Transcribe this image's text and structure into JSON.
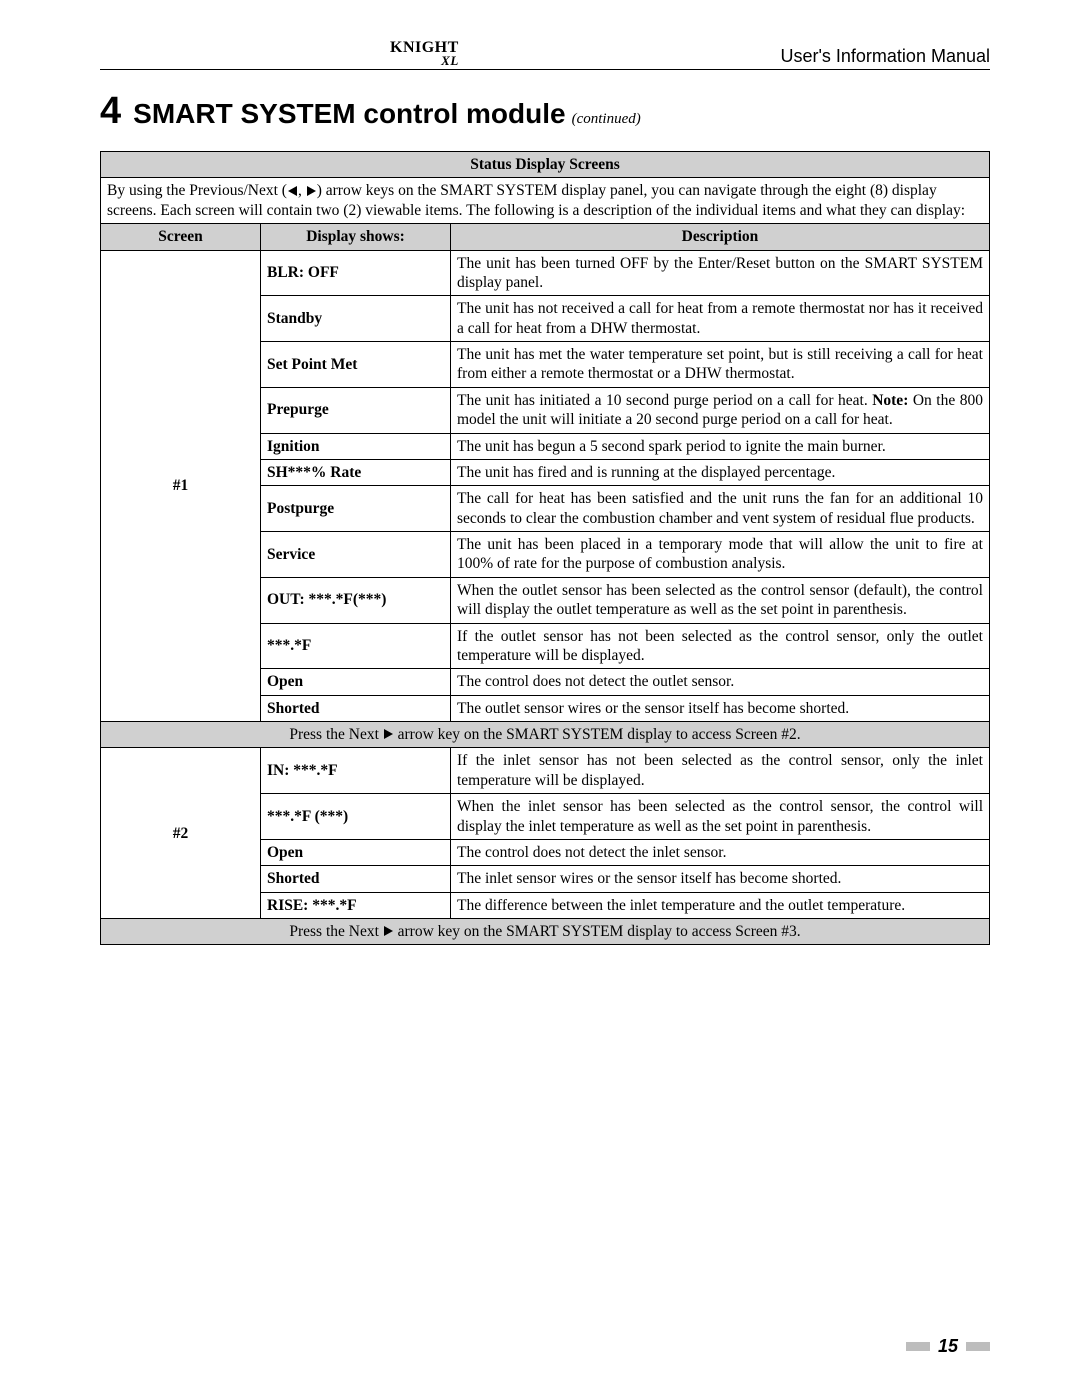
{
  "header": {
    "logo_main": "KNIGHT",
    "logo_sub": "XL",
    "manual_title": "User's Information Manual"
  },
  "section": {
    "number": "4",
    "title": "SMART SYSTEM control module",
    "continued": "(continued)"
  },
  "table": {
    "title": "Status Display Screens",
    "intro_pre": "By using the Previous/Next (",
    "intro_mid": ", ",
    "intro_post": ") arrow keys on the SMART SYSTEM display panel, you can navigate through the eight (8) display screens.  Each screen will contain two (2) viewable items.  The following is a description of the individual items and what they can display:",
    "col_screen": "Screen",
    "col_display": "Display shows:",
    "col_desc": "Description",
    "screen1_label": "#1",
    "screen2_label": "#2",
    "rows1": [
      {
        "display": "BLR: OFF",
        "desc": "The unit has been turned OFF by the Enter/Reset button on the SMART SYSTEM display panel."
      },
      {
        "display": "Standby",
        "desc": "The unit has not received a call for heat from a remote thermostat nor has it received a call for heat from a DHW thermostat."
      },
      {
        "display": "Set Point Met",
        "desc": "The unit has met the water temperature set point, but is still receiving a call for heat from either a remote thermostat or a DHW thermostat."
      },
      {
        "display": "Prepurge",
        "desc_pre": "The unit has initiated a 10 second purge period on a call for heat. ",
        "note_label": "Note:",
        "desc_post": "  On the 800 model the unit will initiate a 20 second purge period on a call for heat."
      },
      {
        "display": "Ignition",
        "desc": "The unit has begun a 5 second spark period to ignite the main burner."
      },
      {
        "display": "SH***% Rate",
        "desc": "The unit has fired and is running at the displayed percentage."
      },
      {
        "display": "Postpurge",
        "desc": "The call for heat has been satisfied and the unit runs the fan for an additional 10 seconds to clear the combustion chamber and vent system of residual flue products."
      },
      {
        "display": "Service",
        "desc": "The unit has been placed in a temporary mode that will allow the unit to fire at 100% of rate for the purpose of combustion analysis."
      },
      {
        "display": "OUT: ***.*F(***)",
        "desc": "When the outlet sensor has been selected as the control sensor (default), the control will display the outlet temperature as well as the set point in parenthesis."
      },
      {
        "display": "***.*F",
        "desc": "If the outlet sensor has not been selected as the control sensor, only the outlet temperature will be displayed."
      },
      {
        "display": "Open",
        "desc": "The control does not detect the outlet sensor."
      },
      {
        "display": "Shorted",
        "desc": "The outlet sensor wires or the sensor itself has become shorted."
      }
    ],
    "nav1_pre": "Press the Next ",
    "nav1_post": " arrow key on the SMART SYSTEM display to access Screen #2.",
    "rows2": [
      {
        "display": "IN: ***.*F",
        "desc": "If the inlet sensor has not been selected as the control sensor, only the inlet temperature will be displayed."
      },
      {
        "display": "***.*F (***)",
        "desc": "When the inlet sensor has been selected as the control sensor, the control will display the inlet temperature as well as the set point in parenthesis."
      },
      {
        "display": "Open",
        "desc": "The control does not detect the inlet sensor."
      },
      {
        "display": "Shorted",
        "desc": "The inlet sensor wires or the sensor itself has become shorted."
      },
      {
        "display": "RISE: ***.*F",
        "desc": "The difference between the inlet temperature and the outlet temperature."
      }
    ],
    "nav2_pre": "Press the Next ",
    "nav2_post": " arrow key on the SMART SYSTEM display to access Screen #3."
  },
  "footer": {
    "page_number": "15"
  }
}
